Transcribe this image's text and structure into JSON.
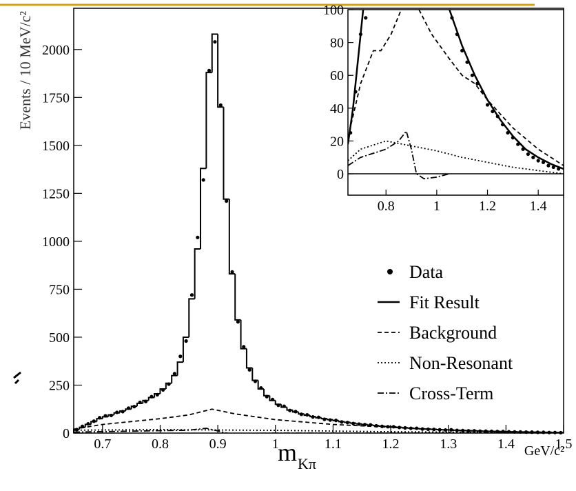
{
  "chart_data": [
    {
      "type": "histogram",
      "y_label": "Events / 10 MeV/c²",
      "x_label": "m",
      "x_label_sub": "Kπ",
      "x_unit": "GeV/c²",
      "xlim": [
        0.65,
        1.5
      ],
      "ylim": [
        0,
        2215
      ],
      "xticks": [
        0.7,
        0.8,
        0.9,
        1,
        1.1,
        1.2,
        1.3,
        1.4,
        1.5
      ],
      "yticks": [
        0,
        250,
        500,
        750,
        1000,
        1250,
        1500,
        1750,
        2000
      ],
      "legend": "lower right",
      "bins": [
        0.65,
        0.66,
        0.67,
        0.68,
        0.69,
        0.7,
        0.71,
        0.72,
        0.73,
        0.74,
        0.75,
        0.76,
        0.77,
        0.78,
        0.79,
        0.8,
        0.81,
        0.82,
        0.83,
        0.84,
        0.85,
        0.86,
        0.87,
        0.88,
        0.89,
        0.9,
        0.91,
        0.92,
        0.93,
        0.94,
        0.95,
        0.96,
        0.97,
        0.98,
        0.99,
        1,
        1.01,
        1.02,
        1.03,
        1.04,
        1.05,
        1.06,
        1.07,
        1.08,
        1.09,
        1.1,
        1.11,
        1.12,
        1.13,
        1.14,
        1.15,
        1.16,
        1.17,
        1.18,
        1.19,
        1.2,
        1.21,
        1.22,
        1.23,
        1.24,
        1.25,
        1.26,
        1.27,
        1.28,
        1.29,
        1.3,
        1.31,
        1.32,
        1.33,
        1.34,
        1.35,
        1.36,
        1.37,
        1.38,
        1.39,
        1.4,
        1.41,
        1.42,
        1.43,
        1.44,
        1.45,
        1.46,
        1.47,
        1.48,
        1.49,
        1.5
      ],
      "series": [
        {
          "name": "Data",
          "style": "points",
          "color": "#000",
          "values": [
            18,
            35,
            48,
            62,
            80,
            90,
            92,
            108,
            112,
            130,
            138,
            160,
            165,
            190,
            200,
            225,
            255,
            310,
            400,
            480,
            720,
            1020,
            1320,
            1890,
            2040,
            1710,
            1210,
            840,
            580,
            450,
            330,
            270,
            235,
            190,
            175,
            145,
            140,
            118,
            112,
            98,
            95,
            84,
            82,
            72,
            68,
            66,
            58,
            55,
            50,
            47,
            44,
            43,
            38,
            35,
            33,
            33,
            29,
            27,
            25,
            25,
            21,
            20,
            19,
            17,
            16,
            17,
            14,
            13,
            12,
            12,
            10,
            10,
            9,
            8,
            8,
            7,
            6,
            6,
            5,
            5,
            4,
            4,
            3,
            3,
            2
          ]
        },
        {
          "name": "Fit Result",
          "style": "step",
          "color": "#000",
          "values": [
            20,
            30,
            45,
            60,
            75,
            85,
            95,
            105,
            115,
            125,
            140,
            155,
            170,
            185,
            205,
            230,
            260,
            300,
            370,
            500,
            700,
            960,
            1380,
            1880,
            2080,
            1700,
            1220,
            830,
            590,
            440,
            340,
            275,
            230,
            195,
            170,
            150,
            135,
            120,
            110,
            100,
            93,
            86,
            80,
            75,
            70,
            65,
            60,
            56,
            52,
            48,
            45,
            42,
            39,
            36,
            34,
            32,
            30,
            28,
            26,
            24,
            22,
            21,
            20,
            18,
            17,
            16,
            15,
            14,
            13,
            12,
            11,
            10,
            9,
            9,
            8,
            7,
            7,
            6,
            6,
            5,
            5,
            4,
            4,
            3,
            3
          ]
        },
        {
          "name": "Background",
          "style": "dashed",
          "color": "#000",
          "x": [
            0.65,
            0.7,
            0.75,
            0.8,
            0.85,
            0.89,
            0.93,
            1,
            1.1,
            1.2,
            1.3,
            1.4,
            1.5
          ],
          "values": [
            20,
            45,
            60,
            75,
            95,
            125,
            100,
            70,
            45,
            30,
            15,
            5,
            2
          ]
        },
        {
          "name": "Non-Resonant",
          "style": "dotted",
          "color": "#000",
          "x": [
            0.65,
            0.8,
            1,
            1.2,
            1.5
          ],
          "values": [
            15,
            18,
            14,
            7,
            1
          ]
        },
        {
          "name": "Cross-Term",
          "style": "dashdot",
          "color": "#000",
          "x": [
            0.65,
            0.85,
            0.88,
            0.92,
            1,
            1.5
          ],
          "values": [
            5,
            15,
            25,
            -3,
            0,
            0
          ]
        }
      ]
    },
    {
      "type": "line",
      "xlim": [
        0.65,
        1.5
      ],
      "ylim": [
        -13,
        100
      ],
      "xticks": [
        0.8,
        1,
        1.2,
        1.4
      ],
      "yticks": [
        0,
        20,
        40,
        60,
        80,
        100
      ],
      "series": [
        {
          "style": "points",
          "color": "#000",
          "x": [
            0.66,
            0.68,
            0.7,
            0.72,
            1.06,
            1.08,
            1.1,
            1.12,
            1.14,
            1.16,
            1.18,
            1.2,
            1.22,
            1.24,
            1.26,
            1.28,
            1.3,
            1.32,
            1.34,
            1.36,
            1.38,
            1.4,
            1.42,
            1.44,
            1.46,
            1.48
          ],
          "values": [
            25,
            50,
            85,
            95,
            95,
            85,
            75,
            68,
            60,
            55,
            50,
            42,
            38,
            35,
            30,
            25,
            22,
            18,
            15,
            12,
            10,
            8,
            7,
            5,
            4,
            3
          ]
        },
        {
          "style": "solid",
          "color": "#000",
          "x": [
            0.65,
            0.67,
            0.69,
            0.71,
            0.9,
            1.05,
            1.1,
            1.15,
            1.2,
            1.25,
            1.3,
            1.35,
            1.4,
            1.45,
            1.5
          ],
          "values": [
            18,
            40,
            70,
            100,
            null,
            100,
            78,
            60,
            45,
            33,
            23,
            15,
            10,
            6,
            3
          ]
        },
        {
          "style": "dashed",
          "color": "#000",
          "x": [
            0.65,
            0.7,
            0.75,
            0.78,
            0.82,
            0.86,
            0.9,
            0.93,
            0.98,
            1.05,
            1.1,
            1.15,
            1.2,
            1.3,
            1.4,
            1.5
          ],
          "values": [
            22,
            55,
            75,
            75,
            85,
            100,
            null,
            100,
            85,
            70,
            60,
            55,
            45,
            28,
            15,
            5
          ]
        },
        {
          "style": "dotted",
          "color": "#000",
          "x": [
            0.65,
            0.7,
            0.8,
            0.9,
            1,
            1.1,
            1.2,
            1.3,
            1.4,
            1.5
          ],
          "values": [
            8,
            15,
            20,
            17,
            14,
            10,
            7,
            4,
            2,
            0
          ]
        },
        {
          "style": "dashdot",
          "color": "#000",
          "x": [
            0.65,
            0.7,
            0.8,
            0.85,
            0.88,
            0.9,
            0.92,
            0.95,
            1,
            1.05
          ],
          "values": [
            5,
            10,
            15,
            20,
            26,
            15,
            0,
            -3,
            -2,
            0
          ]
        }
      ]
    }
  ]
}
